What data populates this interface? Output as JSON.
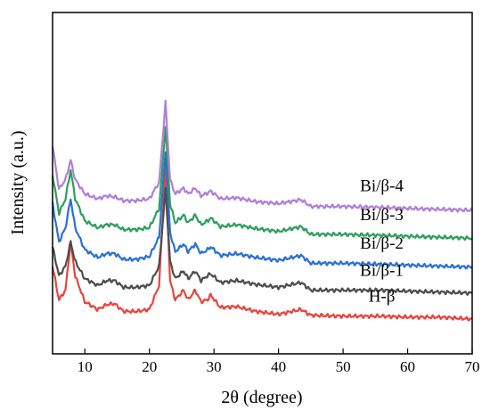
{
  "chart_data": {
    "type": "line",
    "title": "",
    "xlabel": "2θ (degree)",
    "ylabel": "Intensity (a.u.)",
    "xlim": [
      5,
      70
    ],
    "xticks": [
      10,
      20,
      30,
      40,
      50,
      60,
      70
    ],
    "y_ticks_shown": false,
    "grid": false,
    "legend": "inline labels at right end of each trace",
    "peaks_2theta": [
      7.8,
      13.4,
      14.6,
      21.5,
      22.5,
      25.3,
      27.1,
      28.7,
      29.5,
      33.5,
      36.5,
      43.5,
      55.8
    ],
    "series": [
      {
        "name": "H-β",
        "color": "#e8453c",
        "baseline": 0.05,
        "points": [
          [
            5,
            0.55
          ],
          [
            6,
            0.2
          ],
          [
            7,
            0.3
          ],
          [
            7.8,
            0.8
          ],
          [
            8.5,
            0.45
          ],
          [
            10,
            0.18
          ],
          [
            12,
            0.1
          ],
          [
            13.4,
            0.15
          ],
          [
            14.6,
            0.16
          ],
          [
            16,
            0.08
          ],
          [
            18,
            0.08
          ],
          [
            20,
            0.1
          ],
          [
            21.5,
            0.35
          ],
          [
            22.5,
            1.6
          ],
          [
            23.2,
            0.4
          ],
          [
            24,
            0.2
          ],
          [
            25.3,
            0.3
          ],
          [
            26,
            0.2
          ],
          [
            27.1,
            0.3
          ],
          [
            28,
            0.18
          ],
          [
            29,
            0.2
          ],
          [
            29.5,
            0.25
          ],
          [
            31,
            0.12
          ],
          [
            33.5,
            0.13
          ],
          [
            36.5,
            0.08
          ],
          [
            40,
            0.05
          ],
          [
            43.5,
            0.1
          ],
          [
            45,
            0.04
          ],
          [
            50,
            0.03
          ],
          [
            55.8,
            0.03
          ],
          [
            60,
            0.02
          ],
          [
            65,
            0.02
          ],
          [
            70,
            0.0
          ]
        ]
      },
      {
        "name": "Bi/β-1",
        "color": "#4d4d4d",
        "baseline": 0.32,
        "points": [
          [
            5,
            0.75
          ],
          [
            6,
            0.45
          ],
          [
            7,
            0.55
          ],
          [
            7.8,
            0.8
          ],
          [
            8.5,
            0.6
          ],
          [
            10,
            0.42
          ],
          [
            12,
            0.35
          ],
          [
            13.4,
            0.4
          ],
          [
            14.6,
            0.4
          ],
          [
            16,
            0.33
          ],
          [
            18,
            0.33
          ],
          [
            20,
            0.35
          ],
          [
            21.5,
            0.55
          ],
          [
            22.5,
            1.35
          ],
          [
            23.2,
            0.6
          ],
          [
            24,
            0.42
          ],
          [
            25.3,
            0.5
          ],
          [
            26,
            0.42
          ],
          [
            27.1,
            0.5
          ],
          [
            28,
            0.4
          ],
          [
            29,
            0.45
          ],
          [
            29.5,
            0.47
          ],
          [
            31,
            0.38
          ],
          [
            33.5,
            0.4
          ],
          [
            36.5,
            0.36
          ],
          [
            40,
            0.33
          ],
          [
            43.5,
            0.38
          ],
          [
            45,
            0.3
          ],
          [
            50,
            0.3
          ],
          [
            55.8,
            0.3
          ],
          [
            60,
            0.29
          ],
          [
            65,
            0.28
          ],
          [
            70,
            0.27
          ]
        ]
      },
      {
        "name": "Bi/β-2",
        "color": "#2b6fd6",
        "baseline": 0.6,
        "points": [
          [
            5,
            1.2
          ],
          [
            6,
            0.8
          ],
          [
            7,
            0.95
          ],
          [
            7.8,
            1.25
          ],
          [
            8.5,
            0.95
          ],
          [
            10,
            0.72
          ],
          [
            12,
            0.64
          ],
          [
            13.4,
            0.68
          ],
          [
            14.6,
            0.68
          ],
          [
            16,
            0.62
          ],
          [
            18,
            0.62
          ],
          [
            20,
            0.65
          ],
          [
            21.5,
            0.85
          ],
          [
            22.5,
            1.75
          ],
          [
            23.2,
            0.9
          ],
          [
            24,
            0.7
          ],
          [
            25.3,
            0.78
          ],
          [
            26,
            0.7
          ],
          [
            27.1,
            0.78
          ],
          [
            28,
            0.68
          ],
          [
            29,
            0.72
          ],
          [
            29.5,
            0.75
          ],
          [
            31,
            0.66
          ],
          [
            33.5,
            0.68
          ],
          [
            36.5,
            0.64
          ],
          [
            40,
            0.61
          ],
          [
            43.5,
            0.66
          ],
          [
            45,
            0.58
          ],
          [
            50,
            0.58
          ],
          [
            55.8,
            0.57
          ],
          [
            60,
            0.56
          ],
          [
            65,
            0.55
          ],
          [
            70,
            0.54
          ]
        ]
      },
      {
        "name": "Bi/β-3",
        "color": "#2e9e5b",
        "baseline": 0.9,
        "points": [
          [
            5,
            1.5
          ],
          [
            6,
            1.1
          ],
          [
            7,
            1.25
          ],
          [
            7.8,
            1.55
          ],
          [
            8.5,
            1.25
          ],
          [
            10,
            1.02
          ],
          [
            12,
            0.95
          ],
          [
            13.4,
            0.98
          ],
          [
            14.6,
            0.98
          ],
          [
            16,
            0.93
          ],
          [
            18,
            0.93
          ],
          [
            20,
            0.95
          ],
          [
            21.5,
            1.15
          ],
          [
            22.5,
            2.0
          ],
          [
            23.2,
            1.2
          ],
          [
            24,
            1.0
          ],
          [
            25.3,
            1.08
          ],
          [
            26,
            1.0
          ],
          [
            27.1,
            1.08
          ],
          [
            28,
            0.98
          ],
          [
            29,
            1.02
          ],
          [
            29.5,
            1.05
          ],
          [
            31,
            0.96
          ],
          [
            33.5,
            0.98
          ],
          [
            36.5,
            0.94
          ],
          [
            40,
            0.91
          ],
          [
            43.5,
            0.96
          ],
          [
            45,
            0.88
          ],
          [
            50,
            0.88
          ],
          [
            55.8,
            0.87
          ],
          [
            60,
            0.86
          ],
          [
            65,
            0.85
          ],
          [
            70,
            0.84
          ]
        ]
      },
      {
        "name": "Bi/β-4",
        "color": "#b07fd8",
        "baseline": 1.2,
        "points": [
          [
            5,
            1.8
          ],
          [
            6,
            1.35
          ],
          [
            7,
            1.45
          ],
          [
            7.8,
            1.65
          ],
          [
            8.5,
            1.45
          ],
          [
            10,
            1.3
          ],
          [
            12,
            1.25
          ],
          [
            13.4,
            1.28
          ],
          [
            14.6,
            1.27
          ],
          [
            16,
            1.23
          ],
          [
            18,
            1.23
          ],
          [
            20,
            1.25
          ],
          [
            21.5,
            1.42
          ],
          [
            22.5,
            2.25
          ],
          [
            23.2,
            1.45
          ],
          [
            24,
            1.3
          ],
          [
            25.3,
            1.36
          ],
          [
            26,
            1.3
          ],
          [
            27.1,
            1.36
          ],
          [
            28,
            1.28
          ],
          [
            29,
            1.31
          ],
          [
            29.5,
            1.33
          ],
          [
            31,
            1.25
          ],
          [
            33.5,
            1.26
          ],
          [
            36.5,
            1.22
          ],
          [
            40,
            1.2
          ],
          [
            43.5,
            1.24
          ],
          [
            45,
            1.17
          ],
          [
            50,
            1.17
          ],
          [
            55.8,
            1.16
          ],
          [
            60,
            1.15
          ],
          [
            65,
            1.14
          ],
          [
            70,
            1.13
          ]
        ]
      }
    ]
  }
}
